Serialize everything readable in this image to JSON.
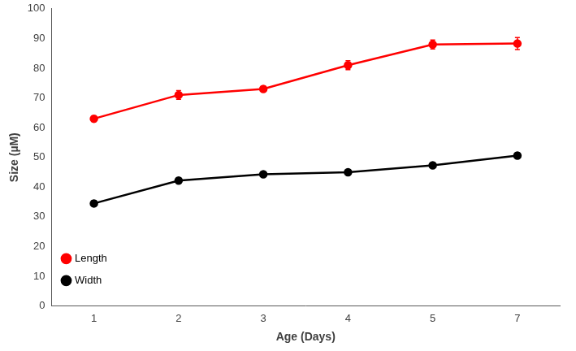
{
  "chart_data": {
    "type": "line",
    "x_label": "Age (Days)",
    "y_label": "Size (µM)",
    "categories": [
      "1",
      "2",
      "3",
      "4",
      "5",
      "7"
    ],
    "series": [
      {
        "name": "Length",
        "color": "#ff0000",
        "marker": "circle",
        "line_style": "solid",
        "values": [
          63,
          71,
          73,
          81,
          88,
          88.3
        ],
        "errors": [
          1,
          1.5,
          1,
          1.5,
          1.5,
          2
        ]
      },
      {
        "name": "Width",
        "color": "#000000",
        "marker": "circle",
        "line_style": "solid",
        "values": [
          34.5,
          42.2,
          44.3,
          45,
          47.3,
          50.6
        ],
        "errors": [
          1,
          0.8,
          0.5,
          0.5,
          0.7,
          0.9
        ]
      }
    ],
    "ylim": [
      0,
      100
    ],
    "yticks": [
      0,
      10,
      20,
      30,
      40,
      50,
      60,
      70,
      80,
      90,
      100
    ],
    "grid": false,
    "legend": "upper right"
  }
}
